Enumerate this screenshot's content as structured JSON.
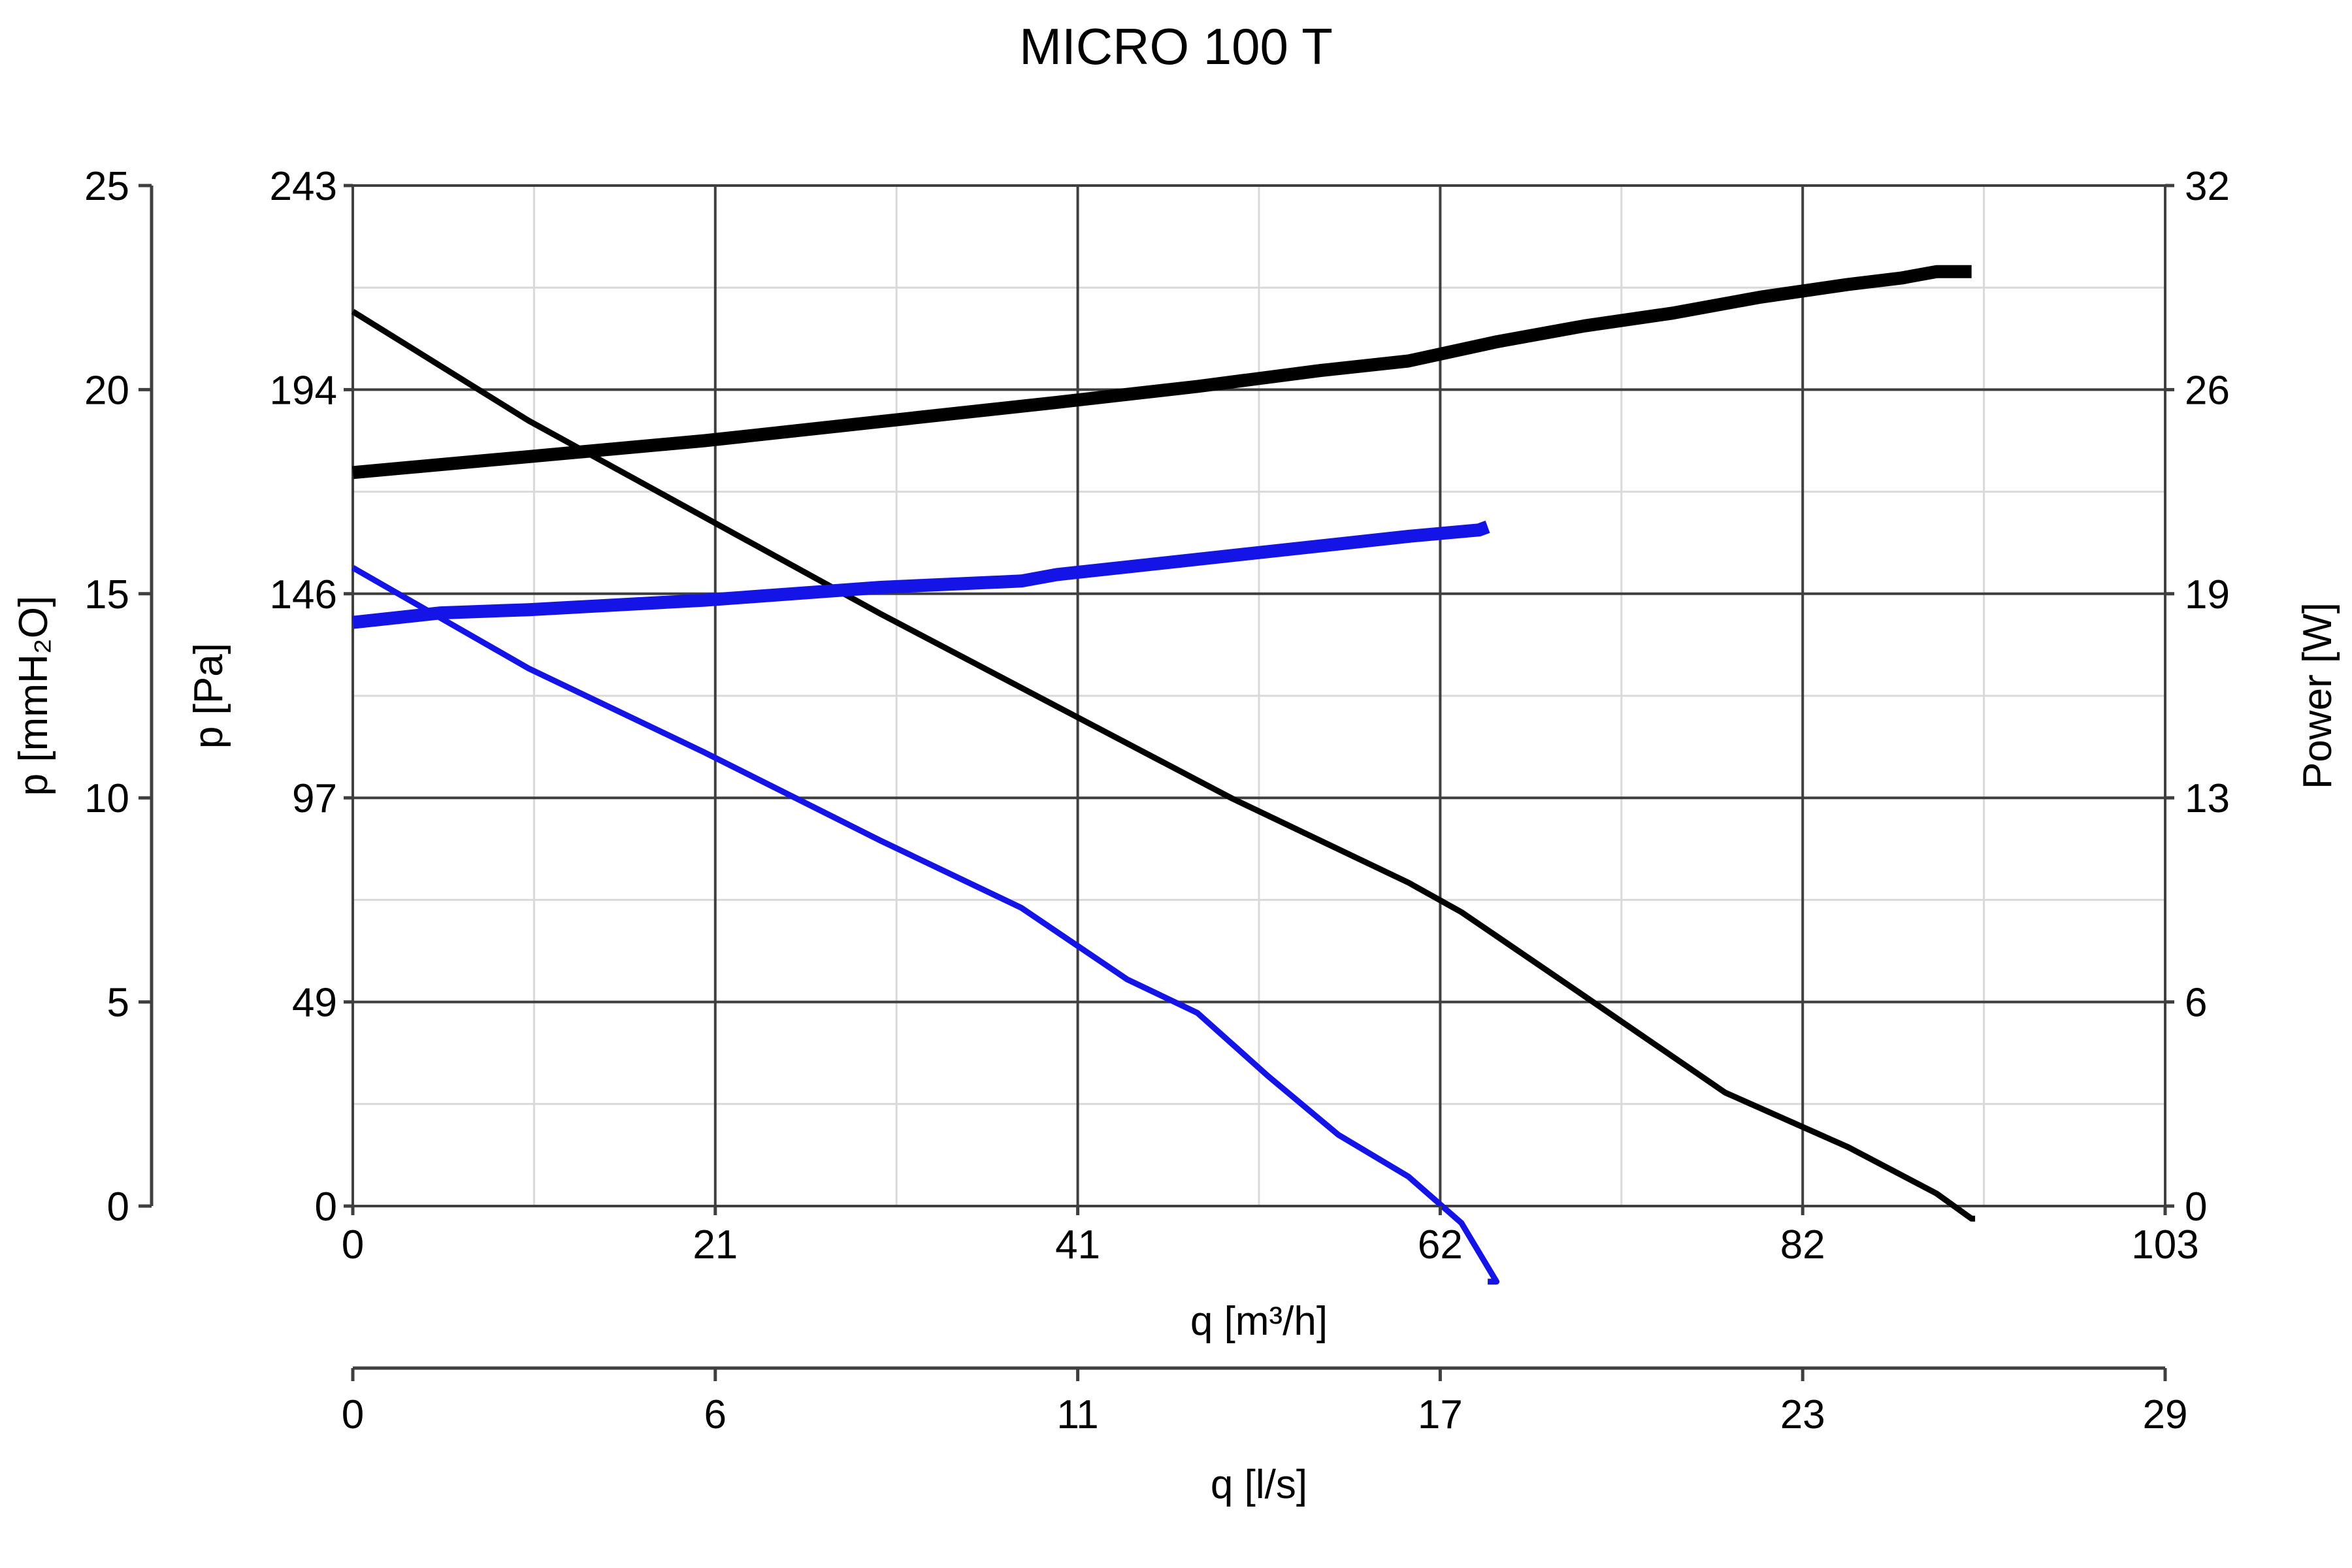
{
  "chart_data": {
    "type": "line",
    "title": "MICRO 100 T",
    "colors": {
      "primary": "#000000",
      "secondary": "#1414e6",
      "grid_major": "#3f3f3f",
      "grid_minor": "#d9d9d9"
    },
    "x_axis": {
      "label": "q [m³/h]",
      "range": [
        0,
        103
      ],
      "ticks": [
        "0",
        "21",
        "41",
        "62",
        "82",
        "103"
      ]
    },
    "x2_axis": {
      "label": "q [l/s]",
      "range": [
        0,
        29
      ],
      "ticks": [
        "0",
        "6",
        "11",
        "17",
        "23",
        "29"
      ]
    },
    "y_axis_pa": {
      "label": "p [Pa]",
      "range": [
        0,
        243
      ],
      "ticks": [
        "0",
        "49",
        "97",
        "146",
        "194",
        "243"
      ]
    },
    "y_axis_mmh2o": {
      "label": "p [mmH₂O]",
      "range": [
        0,
        25
      ],
      "ticks": [
        "0",
        "5",
        "10",
        "15",
        "20",
        "25"
      ]
    },
    "y_axis_power": {
      "label": "Power [W]",
      "range": [
        0,
        32
      ],
      "ticks": [
        "0",
        "6",
        "13",
        "19",
        "26",
        "32"
      ]
    },
    "series": [
      {
        "kind": "pressure",
        "axis": "pa",
        "color": "#000000",
        "x": [
          0,
          5,
          10,
          20,
          30,
          40,
          50,
          60,
          63,
          70,
          78,
          85,
          90,
          92,
          92.2
        ],
        "y": [
          213,
          200,
          187,
          164,
          141,
          119,
          97,
          77,
          70,
          50,
          27,
          14,
          3,
          -3,
          -3
        ]
      },
      {
        "kind": "power",
        "axis": "power",
        "color": "#000000",
        "x": [
          0,
          10,
          20,
          30,
          40,
          48,
          55,
          60,
          65,
          70,
          75,
          80,
          85,
          88,
          90,
          92
        ],
        "y": [
          23,
          23.5,
          24,
          24.6,
          25.2,
          25.7,
          26.2,
          26.5,
          27.1,
          27.6,
          28,
          28.5,
          28.9,
          29.1,
          29.3,
          29.3
        ]
      },
      {
        "kind": "pressure",
        "axis": "pa",
        "color": "#1414e6",
        "x": [
          0,
          5,
          10,
          20,
          30,
          38,
          44,
          48,
          52,
          56,
          60,
          63,
          65,
          64.5,
          64.5
        ],
        "y": [
          152,
          140,
          128,
          108,
          87,
          71,
          54,
          46,
          31,
          17,
          7,
          -4,
          -18,
          -18,
          -18
        ]
      },
      {
        "kind": "power",
        "axis": "power",
        "color": "#1414e6",
        "x": [
          0,
          5,
          10,
          20,
          30,
          38,
          40,
          50,
          60,
          64,
          64.5
        ],
        "y": [
          18.3,
          18.6,
          18.7,
          19,
          19.4,
          19.6,
          19.8,
          20.4,
          21,
          21.2,
          21.3
        ]
      }
    ]
  }
}
